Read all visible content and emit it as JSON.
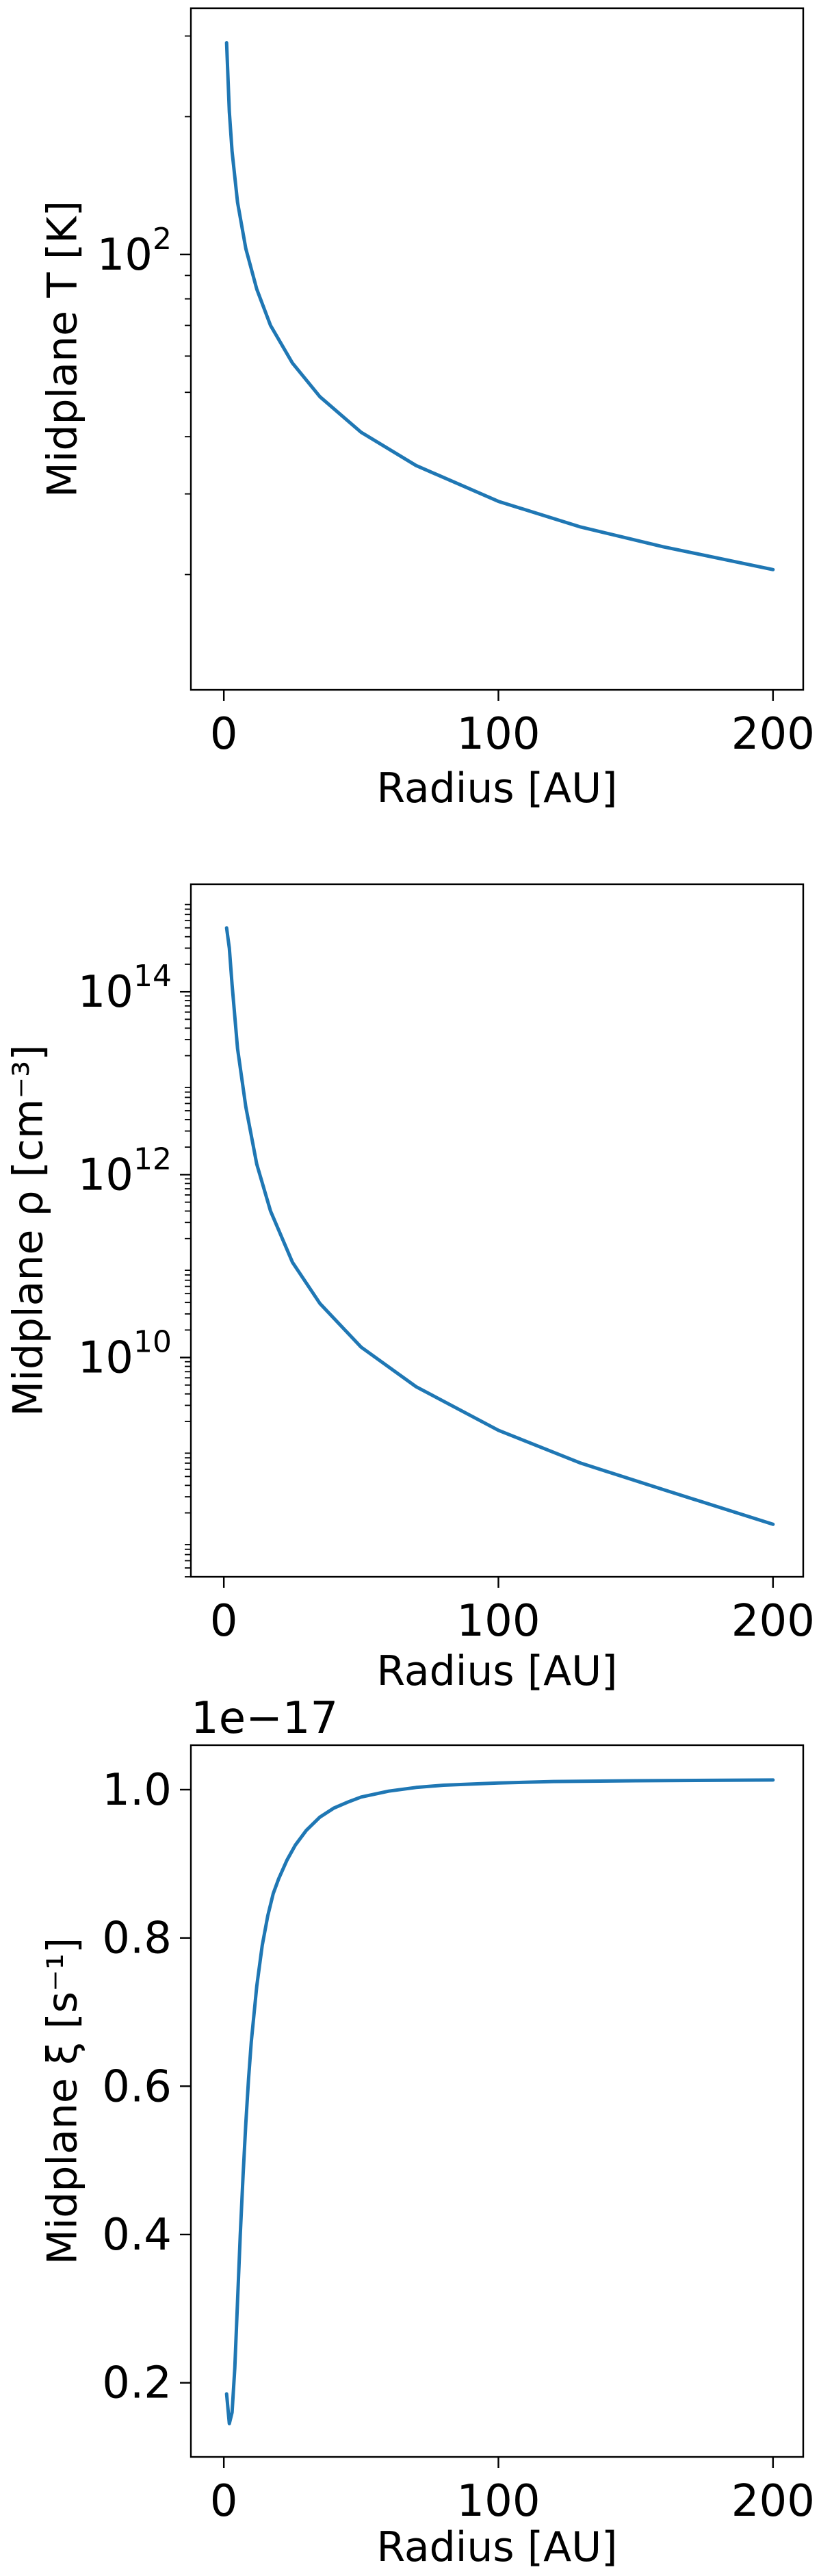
{
  "chart_data": [
    {
      "type": "line",
      "xlabel": "Radius [AU]",
      "ylabel": "Midplane T [K]",
      "yscale": "log",
      "xlim": [
        -12,
        211
      ],
      "ylim": [
        11.2,
        345
      ],
      "xticks": [
        0,
        100,
        200
      ],
      "xtick_labels": [
        "0",
        "100",
        "200"
      ],
      "yticks": [
        100
      ],
      "ytick_labels": [
        {
          "base": "10",
          "exp": "2"
        }
      ],
      "grid": false,
      "series": [
        {
          "color": "#1f77b4",
          "x": [
            1,
            2,
            3,
            5,
            8,
            12,
            17,
            25,
            35,
            50,
            70,
            100,
            130,
            160,
            200
          ],
          "values": [
            290,
            205,
            168,
            130,
            103,
            84,
            70,
            57.9,
            48.9,
            40.9,
            34.6,
            28.9,
            25.4,
            23.0,
            20.5
          ]
        }
      ]
    },
    {
      "type": "line",
      "xlabel": "Radius [AU]",
      "ylabel": "Midplane ρ [cm⁻³]",
      "yscale": "log",
      "xlim": [
        -12,
        211
      ],
      "ylim": [
        40000000.0,
        1500000000000000.0
      ],
      "xticks": [
        0,
        100,
        200
      ],
      "xtick_labels": [
        "0",
        "100",
        "200"
      ],
      "yticks": [
        10000000000.0,
        1000000000000.0,
        100000000000000.0
      ],
      "ytick_labels": [
        {
          "base": "10",
          "exp": "10"
        },
        {
          "base": "10",
          "exp": "12"
        },
        {
          "base": "10",
          "exp": "14"
        }
      ],
      "grid": false,
      "series": [
        {
          "color": "#1f77b4",
          "x": [
            1,
            2,
            3,
            5,
            8,
            12,
            17,
            25,
            35,
            50,
            70,
            100,
            130,
            160,
            200
          ],
          "values": [
            500000000000000.0,
            300000000000000.0,
            120000000000000.0,
            24000000000000.0,
            5500000000000.0,
            1300000000000.0,
            400000000000.0,
            110000000000.0,
            39000000000.0,
            13000000000.0,
            4800000000.0,
            1600000000.0,
            700000000.0,
            360000000.0,
            150000000.0
          ]
        }
      ]
    },
    {
      "type": "line",
      "xlabel": "Radius [AU]",
      "ylabel": "Midplane ξ [s⁻¹]",
      "yscale": "linear",
      "offset_text": "1e−17",
      "xlim": [
        -12,
        211
      ],
      "ylim": [
        0.1,
        1.06
      ],
      "xticks": [
        0,
        100,
        200
      ],
      "xtick_labels": [
        "0",
        "100",
        "200"
      ],
      "yticks": [
        0.2,
        0.4,
        0.6,
        0.8,
        1.0
      ],
      "ytick_labels": [
        "0.2",
        "0.4",
        "0.6",
        "0.8",
        "1.0"
      ],
      "grid": false,
      "series": [
        {
          "color": "#1f77b4",
          "x": [
            1,
            2,
            3,
            4,
            5,
            6,
            7,
            8,
            9,
            10,
            12,
            14,
            16,
            18,
            20,
            23,
            26,
            30,
            35,
            40,
            45,
            50,
            60,
            70,
            80,
            100,
            120,
            150,
            200
          ],
          "values": [
            0.185,
            0.145,
            0.16,
            0.22,
            0.31,
            0.4,
            0.48,
            0.55,
            0.61,
            0.66,
            0.735,
            0.79,
            0.83,
            0.86,
            0.88,
            0.905,
            0.925,
            0.945,
            0.963,
            0.975,
            0.983,
            0.99,
            0.998,
            1.003,
            1.006,
            1.009,
            1.011,
            1.012,
            1.013
          ]
        }
      ]
    }
  ]
}
